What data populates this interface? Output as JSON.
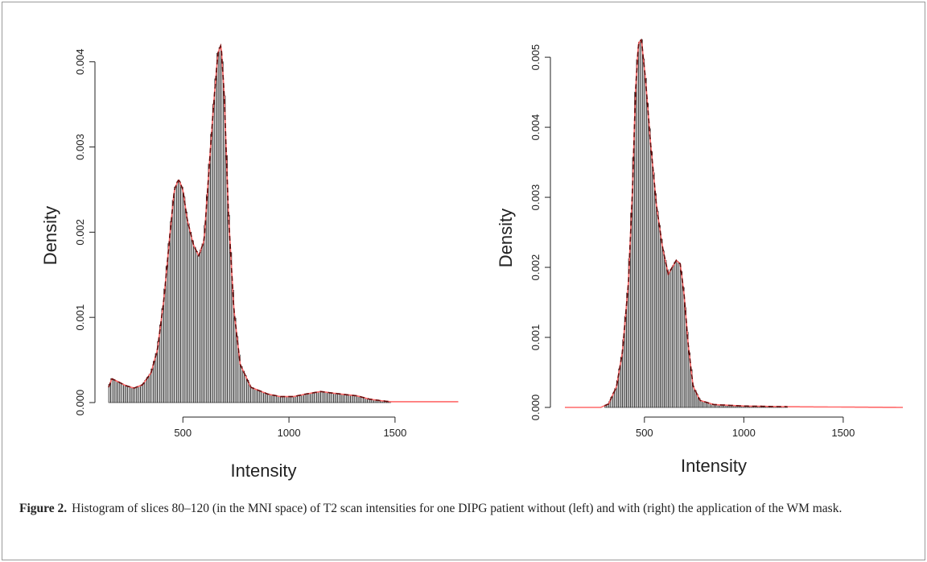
{
  "caption": {
    "label": "Figure 2.",
    "text": "Histogram of slices 80–120 (in the MNI space) of T2 scan intensities for one DIPG patient without (left) and with (right) the application of the WM mask."
  },
  "colors": {
    "bars_fill": "#c8c8c8",
    "bars_stroke": "#111111",
    "density_curve": "#ff6a6a",
    "dashed_curve": "#6a0d0d"
  },
  "chart_data": [
    {
      "type": "bar",
      "xlabel": "Intensity",
      "ylabel": "Density",
      "xlim": [
        150,
        1800
      ],
      "ylim": [
        0,
        0.0043
      ],
      "xticks": [
        500,
        1000,
        1500
      ],
      "xtick_labels": [
        "500",
        "1000",
        "1500"
      ],
      "yticks": [
        0,
        0.001,
        0.002,
        0.003,
        0.004
      ],
      "ytick_labels": [
        "0.000",
        "0.001",
        "0.002",
        "0.003",
        "0.004"
      ],
      "density_points": [
        [
          150,
          0.00018
        ],
        [
          165,
          0.00028
        ],
        [
          190,
          0.00025
        ],
        [
          230,
          0.0002
        ],
        [
          270,
          0.00017
        ],
        [
          310,
          0.00021
        ],
        [
          350,
          0.00035
        ],
        [
          380,
          0.00062
        ],
        [
          410,
          0.0012
        ],
        [
          440,
          0.002
        ],
        [
          460,
          0.0025
        ],
        [
          480,
          0.00262
        ],
        [
          500,
          0.0025
        ],
        [
          520,
          0.00215
        ],
        [
          550,
          0.00185
        ],
        [
          575,
          0.00172
        ],
        [
          600,
          0.0019
        ],
        [
          625,
          0.0028
        ],
        [
          645,
          0.0035
        ],
        [
          665,
          0.0041
        ],
        [
          680,
          0.0042
        ],
        [
          695,
          0.0036
        ],
        [
          715,
          0.0022
        ],
        [
          740,
          0.0011
        ],
        [
          770,
          0.00045
        ],
        [
          820,
          0.00018
        ],
        [
          900,
          0.0001
        ],
        [
          960,
          7e-05
        ],
        [
          1020,
          7e-05
        ],
        [
          1080,
          0.0001
        ],
        [
          1150,
          0.00013
        ],
        [
          1210,
          0.00011
        ],
        [
          1280,
          9e-05
        ],
        [
          1320,
          8e-05
        ],
        [
          1380,
          4e-05
        ],
        [
          1440,
          2e-05
        ],
        [
          1480,
          1e-05
        ],
        [
          1800,
          1e-05
        ]
      ],
      "bar_range": [
        150,
        1480
      ],
      "bar_width": 10
    },
    {
      "type": "bar",
      "xlabel": "Intensity",
      "ylabel": "Density",
      "xlim": [
        100,
        1800
      ],
      "ylim": [
        0,
        0.0053
      ],
      "xticks": [
        500,
        1000,
        1500
      ],
      "xtick_labels": [
        "500",
        "1000",
        "1500"
      ],
      "yticks": [
        0,
        0.001,
        0.002,
        0.003,
        0.004,
        0.005
      ],
      "ytick_labels": [
        "0.000",
        "0.001",
        "0.002",
        "0.003",
        "0.004",
        "0.005"
      ],
      "density_points": [
        [
          100,
          0
        ],
        [
          280,
          0
        ],
        [
          320,
          5e-05
        ],
        [
          360,
          0.0003
        ],
        [
          390,
          0.0008
        ],
        [
          420,
          0.0018
        ],
        [
          440,
          0.0031
        ],
        [
          455,
          0.0045
        ],
        [
          470,
          0.0052
        ],
        [
          485,
          0.00525
        ],
        [
          505,
          0.0047
        ],
        [
          530,
          0.0038
        ],
        [
          560,
          0.0029
        ],
        [
          590,
          0.0023
        ],
        [
          620,
          0.0019
        ],
        [
          640,
          0.002
        ],
        [
          660,
          0.0021
        ],
        [
          680,
          0.00205
        ],
        [
          700,
          0.0016
        ],
        [
          720,
          0.0009
        ],
        [
          745,
          0.0003
        ],
        [
          780,
          0.0001
        ],
        [
          850,
          4e-05
        ],
        [
          1000,
          2e-05
        ],
        [
          1200,
          1e-05
        ],
        [
          1800,
          0
        ]
      ],
      "bar_range": [
        300,
        1220
      ],
      "bar_width": 10
    }
  ]
}
